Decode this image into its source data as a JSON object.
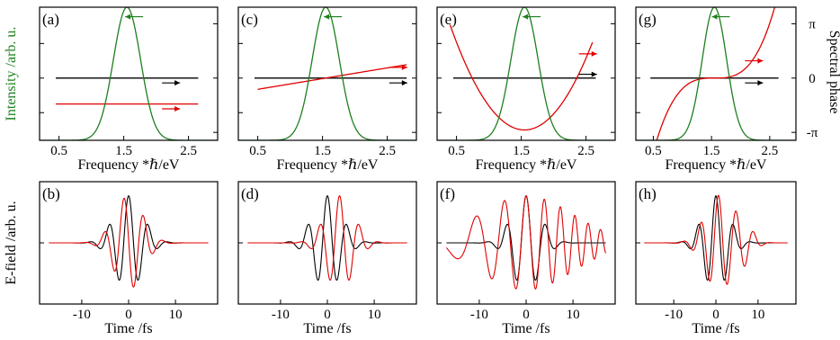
{
  "figure": {
    "left_ylabel_top": "Intensity /arb. u.",
    "left_ylabel_bottom": "E-field /arb. u.",
    "right_ylabel_top": "Spectral phase",
    "colors": {
      "intensity": "#1e7f1e",
      "phase": "#e00000",
      "reference": "#000000",
      "axis": "#000000"
    }
  },
  "chart_data": [
    {
      "type": "line",
      "panel": "(a)",
      "xlabel": "Frequency *ℏ/eV",
      "xlim": [
        0.2,
        2.95
      ],
      "ylim": [
        -3.6,
        4.1
      ],
      "x_ticks": [
        {
          "v": 0.5,
          "label": "0.5"
        },
        {
          "v": 1.5,
          "label": "1.5"
        },
        {
          "v": 2.5,
          "label": "2.5"
        }
      ],
      "y_ticks_right": [
        {
          "v": 3.14159,
          "label": "π"
        },
        {
          "v": 0,
          "label": "0"
        },
        {
          "v": -3.14159,
          "label": "-π"
        }
      ],
      "intensity": {
        "center": 1.55,
        "sigma": 0.21,
        "peak": 4.1
      },
      "reference": {
        "x": [
          0.45,
          2.65
        ],
        "y": [
          0,
          0
        ]
      },
      "phase": {
        "kind": "const",
        "x": [
          0.45,
          2.65
        ],
        "c": -1.5
      },
      "arrows": [
        {
          "color": "intensity",
          "x": 1.66,
          "y": 3.55,
          "dir": "left"
        },
        {
          "color": "reference",
          "x": 2.23,
          "y": -0.28,
          "dir": "right"
        },
        {
          "color": "phase",
          "x": 2.23,
          "y": -1.78,
          "dir": "right"
        }
      ]
    },
    {
      "type": "line",
      "panel": "(c)",
      "xlabel": "Frequency *ℏ/eV",
      "xlim": [
        0.2,
        2.95
      ],
      "ylim": [
        -3.6,
        4.1
      ],
      "x_ticks": [
        {
          "v": 0.5,
          "label": "0.5"
        },
        {
          "v": 1.5,
          "label": "1.5"
        },
        {
          "v": 2.5,
          "label": "2.5"
        }
      ],
      "y_ticks_right": [
        {
          "v": 3.14159,
          "label": "π"
        },
        {
          "v": 0,
          "label": "0"
        },
        {
          "v": -3.14159,
          "label": "-π"
        }
      ],
      "intensity": {
        "center": 1.55,
        "sigma": 0.21,
        "peak": 4.1
      },
      "reference": {
        "x": [
          0.45,
          2.8
        ],
        "y": [
          0,
          0
        ]
      },
      "phase": {
        "kind": "poly",
        "x": [
          0.5,
          2.8
        ],
        "c": [
          0,
          0.62,
          0,
          0
        ]
      },
      "arrows": [
        {
          "color": "intensity",
          "x": 1.66,
          "y": 3.55,
          "dir": "left"
        },
        {
          "color": "phase",
          "x": 2.67,
          "y": 0.62,
          "dir": "right"
        },
        {
          "color": "reference",
          "x": 2.67,
          "y": -0.28,
          "dir": "right"
        }
      ]
    },
    {
      "type": "line",
      "panel": "(e)",
      "xlabel": "Frequency *ℏ/eV",
      "xlim": [
        0.2,
        2.95
      ],
      "ylim": [
        -3.6,
        4.1
      ],
      "x_ticks": [
        {
          "v": 0.5,
          "label": "0.5"
        },
        {
          "v": 1.5,
          "label": "1.5"
        },
        {
          "v": 2.5,
          "label": "2.5"
        }
      ],
      "y_ticks_right": [
        {
          "v": 3.14159,
          "label": "π"
        },
        {
          "v": 0,
          "label": "0"
        },
        {
          "v": -3.14159,
          "label": "-π"
        }
      ],
      "intensity": {
        "center": 1.55,
        "sigma": 0.21,
        "peak": 4.1
      },
      "reference": {
        "x": [
          0.45,
          2.65
        ],
        "y": [
          0,
          0
        ]
      },
      "phase": {
        "kind": "poly",
        "x": [
          0.4,
          2.6
        ],
        "c": [
          -3.0,
          0,
          4.6,
          0
        ]
      },
      "arrows": [
        {
          "color": "intensity",
          "x": 1.66,
          "y": 3.55,
          "dir": "left"
        },
        {
          "color": "phase",
          "x": 2.53,
          "y": 1.4,
          "dir": "right"
        },
        {
          "color": "reference",
          "x": 2.53,
          "y": 0.22,
          "dir": "right"
        }
      ]
    },
    {
      "type": "line",
      "panel": "(g)",
      "xlabel": "Frequency *ℏ/eV",
      "xlim": [
        0.2,
        2.95
      ],
      "ylim": [
        -3.6,
        4.1
      ],
      "x_ticks": [
        {
          "v": 0.5,
          "label": "0.5"
        },
        {
          "v": 1.5,
          "label": "1.5"
        },
        {
          "v": 2.5,
          "label": "2.5"
        }
      ],
      "y_ticks_right": [
        {
          "v": 3.14159,
          "label": "π"
        },
        {
          "v": 0,
          "label": "0"
        },
        {
          "v": -3.14159,
          "label": "-π"
        }
      ],
      "intensity": {
        "center": 1.55,
        "sigma": 0.21,
        "peak": 4.1
      },
      "reference": {
        "x": [
          0.45,
          2.65
        ],
        "y": [
          0,
          0
        ]
      },
      "phase": {
        "kind": "poly",
        "x": [
          0.55,
          2.6
        ],
        "c": [
          0,
          0,
          0,
          3.7
        ]
      },
      "arrows": [
        {
          "color": "intensity",
          "x": 1.66,
          "y": 3.55,
          "dir": "left"
        },
        {
          "color": "phase",
          "x": 2.23,
          "y": 1.0,
          "dir": "right"
        },
        {
          "color": "reference",
          "x": 2.23,
          "y": -0.28,
          "dir": "right"
        }
      ]
    },
    {
      "type": "line",
      "panel": "(b)",
      "xlabel": "Time /fs",
      "xlim": [
        -19,
        19
      ],
      "ylim": [
        -1.3,
        1.3
      ],
      "x_ticks": [
        {
          "v": -10,
          "label": "-10"
        },
        {
          "v": 0,
          "label": "0"
        },
        {
          "v": 10,
          "label": "10"
        }
      ],
      "time_range": [
        -17,
        17
      ],
      "carrier": 1.5,
      "series": [
        {
          "color": "reference",
          "sigma": 3.0,
          "amp": 1.0,
          "shift": 0,
          "chirp": 0
        },
        {
          "color": "phase",
          "sigma": 3.0,
          "amp": 1.0,
          "shift": 0,
          "chirp": 0,
          "phase0": 1.5
        }
      ]
    },
    {
      "type": "line",
      "panel": "(d)",
      "xlabel": "Time /fs",
      "xlim": [
        -19,
        19
      ],
      "ylim": [
        -1.3,
        1.3
      ],
      "x_ticks": [
        {
          "v": -10,
          "label": "-10"
        },
        {
          "v": 0,
          "label": "0"
        },
        {
          "v": 10,
          "label": "10"
        }
      ],
      "time_range": [
        -17,
        17
      ],
      "carrier": 1.5,
      "series": [
        {
          "color": "reference",
          "sigma": 3.0,
          "amp": 1.0,
          "shift": 0,
          "chirp": 0
        },
        {
          "color": "phase",
          "sigma": 3.0,
          "amp": 1.0,
          "shift": 2.6,
          "chirp": 0
        }
      ]
    },
    {
      "type": "line",
      "panel": "(f)",
      "xlabel": "Time /fs",
      "xlim": [
        -19,
        19
      ],
      "ylim": [
        -1.3,
        1.3
      ],
      "x_ticks": [
        {
          "v": -10,
          "label": "-10"
        },
        {
          "v": 0,
          "label": "0"
        },
        {
          "v": 10,
          "label": "10"
        }
      ],
      "time_range": [
        -17,
        17
      ],
      "carrier": 1.5,
      "series": [
        {
          "color": "reference",
          "sigma": 3.0,
          "amp": 1.0,
          "shift": 0,
          "chirp": 0
        },
        {
          "color": "phase",
          "sigma": 10.0,
          "amp": 1.0,
          "shift": 0,
          "chirp": 0.03
        }
      ]
    },
    {
      "type": "line",
      "panel": "(h)",
      "xlabel": "Time /fs",
      "xlim": [
        -19,
        19
      ],
      "ylim": [
        -1.3,
        1.3
      ],
      "x_ticks": [
        {
          "v": -10,
          "label": "-10"
        },
        {
          "v": 0,
          "label": "0"
        },
        {
          "v": 10,
          "label": "10"
        }
      ],
      "time_range": [
        -17,
        17
      ],
      "carrier": 1.5,
      "series": [
        {
          "color": "reference",
          "sigma": 3.0,
          "amp": 1.0,
          "shift": 0,
          "chirp": 0
        },
        {
          "color": "phase",
          "sigma": 3.2,
          "amp": 1.0,
          "shift": 0.6,
          "chirp": 0,
          "tail": 0.35
        }
      ]
    }
  ]
}
